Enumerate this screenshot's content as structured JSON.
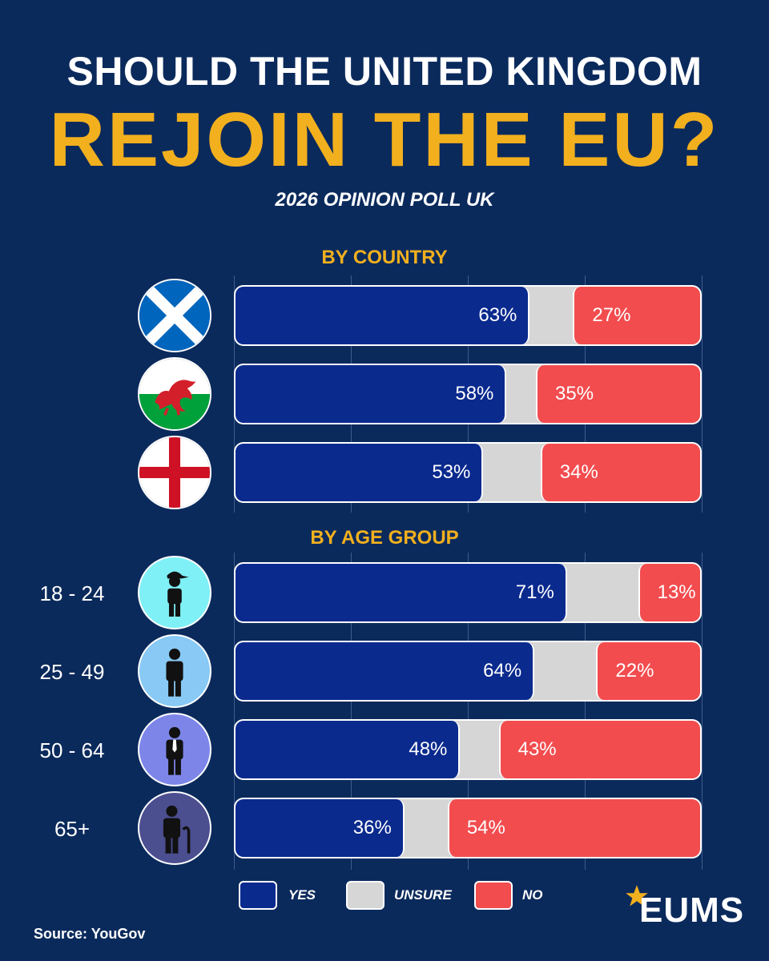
{
  "header": {
    "line1": "SHOULD THE UNITED KINGDOM",
    "line2": "REJOIN THE EU?",
    "subtitle": "2026 OPINION POLL UK"
  },
  "sections": {
    "country": "BY COUNTRY",
    "age": "BY AGE GROUP"
  },
  "colors": {
    "background": "#0b2a5c",
    "accent": "#f2b01e",
    "yes": "#0a2a8e",
    "unsure": "#d6d6d6",
    "no": "#f24c4f"
  },
  "chart_data": [
    {
      "type": "bar",
      "stacked": true,
      "orientation": "horizontal",
      "title": "BY COUNTRY",
      "categories": [
        "Scotland",
        "Wales",
        "England"
      ],
      "category_icons": [
        "scotland-flag-icon",
        "wales-flag-icon",
        "england-flag-icon"
      ],
      "series": [
        {
          "name": "YES",
          "values": [
            63,
            58,
            53
          ]
        },
        {
          "name": "UNSURE",
          "values": [
            10,
            7,
            13
          ]
        },
        {
          "name": "NO",
          "values": [
            27,
            35,
            34
          ]
        }
      ],
      "data_labels": {
        "yes": [
          "63%",
          "58%",
          "53%"
        ],
        "no": [
          "27%",
          "35%",
          "34%"
        ]
      },
      "xlim": [
        0,
        100
      ],
      "grid": true
    },
    {
      "type": "bar",
      "stacked": true,
      "orientation": "horizontal",
      "title": "BY AGE GROUP",
      "categories": [
        "18 - 24",
        "25 - 49",
        "50 - 64",
        "65+"
      ],
      "category_icons": [
        "young-person-icon",
        "adult-person-icon",
        "middle-aged-person-icon",
        "elderly-person-icon"
      ],
      "series": [
        {
          "name": "YES",
          "values": [
            71,
            64,
            48,
            36
          ]
        },
        {
          "name": "UNSURE",
          "values": [
            16,
            14,
            9,
            10
          ]
        },
        {
          "name": "NO",
          "values": [
            13,
            22,
            43,
            54
          ]
        }
      ],
      "data_labels": {
        "yes": [
          "71%",
          "64%",
          "48%",
          "36%"
        ],
        "no": [
          "13%",
          "22%",
          "43%",
          "54%"
        ]
      },
      "xlim": [
        0,
        100
      ],
      "grid": true
    }
  ],
  "legend": {
    "yes": "YES",
    "unsure": "UNSURE",
    "no": "NO",
    "placement": "bottom"
  },
  "footer": {
    "source": "Source: YouGov",
    "logo_text": "EUMS",
    "logo_icon": "star-icon"
  }
}
